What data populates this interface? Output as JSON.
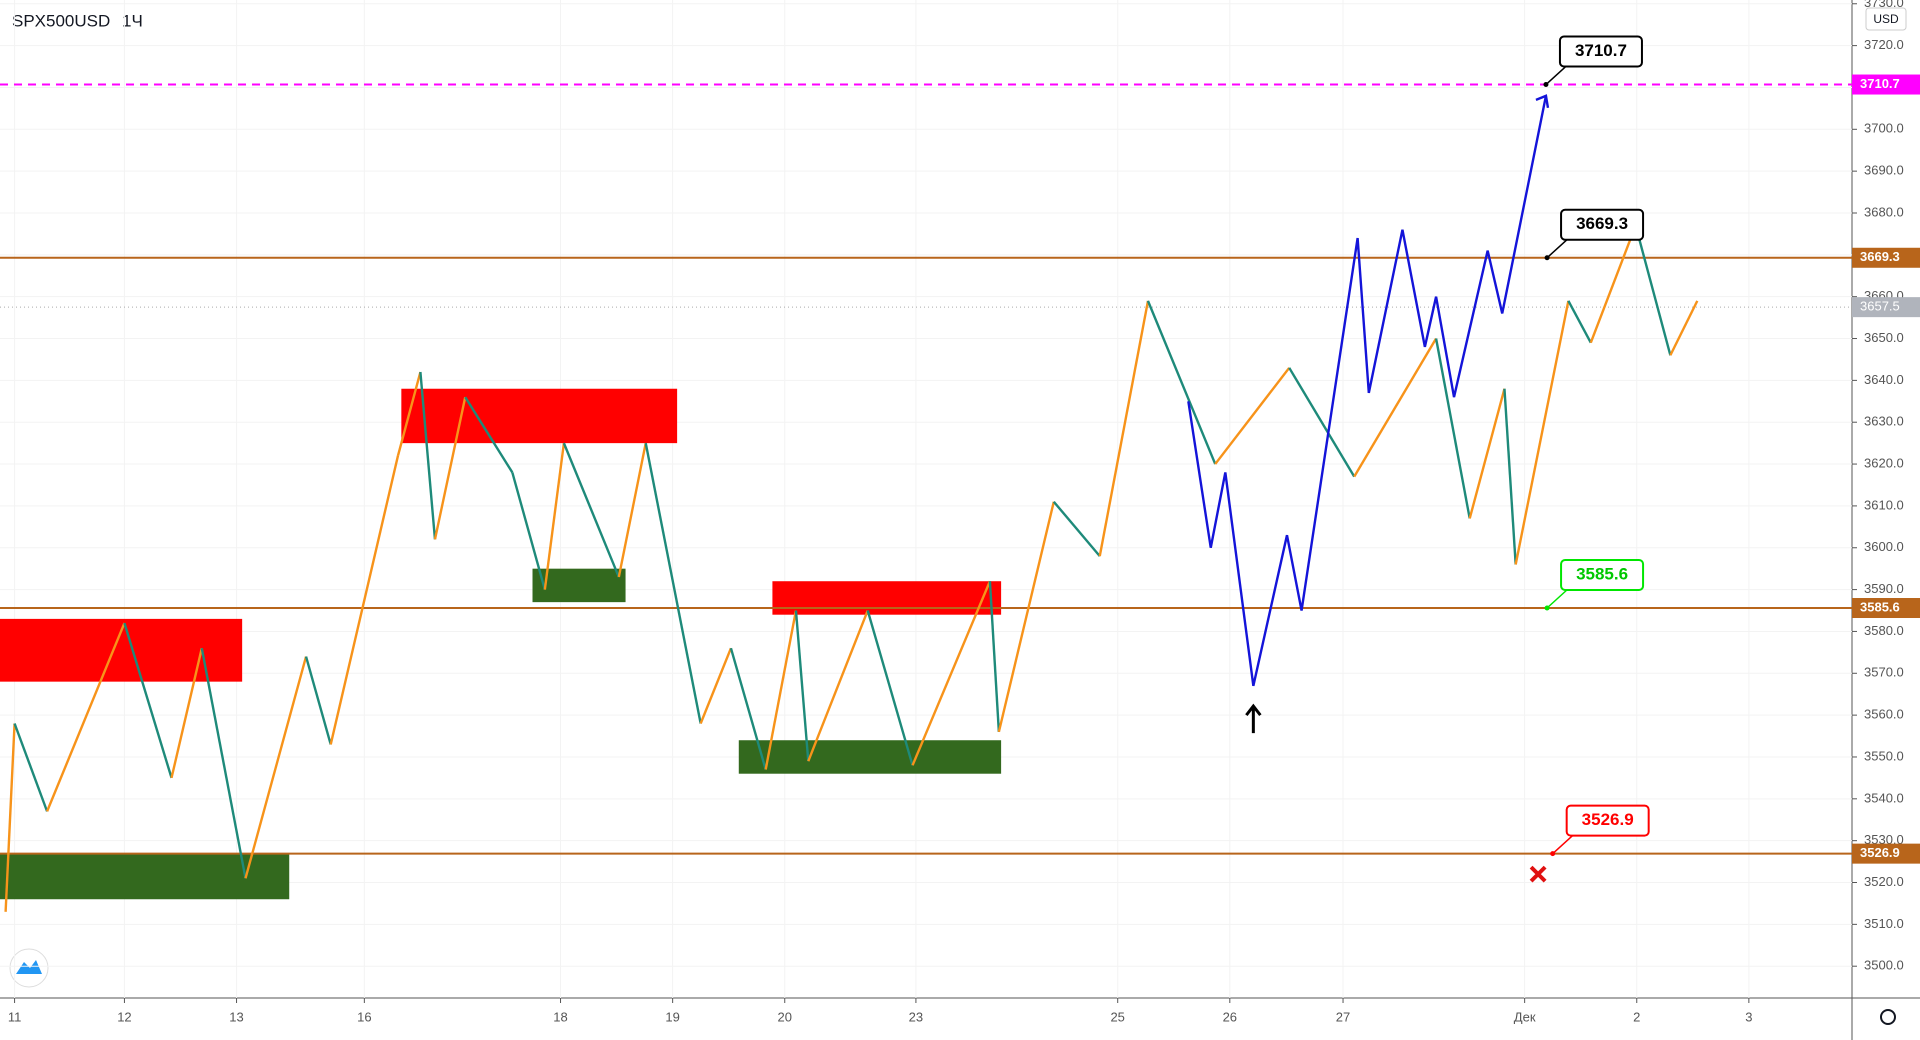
{
  "chart_data": {
    "type": "line",
    "title": "SPX500USD",
    "interval": "1Ч",
    "currency": "USD",
    "xlim": [
      0,
      16.52
    ],
    "ylim": [
      3492.4,
      3730.9
    ],
    "yticks": [
      {
        "value": 3500,
        "label": "3500.0"
      },
      {
        "value": 3510,
        "label": "3510.0"
      },
      {
        "value": 3520,
        "label": "3520.0"
      },
      {
        "value": 3530,
        "label": "3530.0"
      },
      {
        "value": 3540,
        "label": "3540.0"
      },
      {
        "value": 3550,
        "label": "3550.0"
      },
      {
        "value": 3560,
        "label": "3560.0"
      },
      {
        "value": 3570,
        "label": "3570.0"
      },
      {
        "value": 3580,
        "label": "3580.0"
      },
      {
        "value": 3590,
        "label": "3590.0"
      },
      {
        "value": 3600,
        "label": "3600.0"
      },
      {
        "value": 3610,
        "label": "3610.0"
      },
      {
        "value": 3620,
        "label": "3620.0"
      },
      {
        "value": 3630,
        "label": "3630.0"
      },
      {
        "value": 3640,
        "label": "3640.0"
      },
      {
        "value": 3650,
        "label": "3650.0"
      },
      {
        "value": 3660,
        "label": "3660.0"
      },
      {
        "value": 3670,
        "label": "3670.0"
      },
      {
        "value": 3680,
        "label": "3680.0"
      },
      {
        "value": 3690,
        "label": "3690.0"
      },
      {
        "value": 3700,
        "label": "3700.0"
      },
      {
        "value": 3710,
        "label": "3710.0"
      },
      {
        "value": 3720,
        "label": "3720.0"
      },
      {
        "value": 3730,
        "label": "3730.0"
      }
    ],
    "xticks": [
      {
        "value": 0.13,
        "label": "11"
      },
      {
        "value": 1.11,
        "label": "12"
      },
      {
        "value": 2.11,
        "label": "13"
      },
      {
        "value": 3.25,
        "label": "16"
      },
      {
        "value": 5.0,
        "label": "18"
      },
      {
        "value": 6.0,
        "label": "19"
      },
      {
        "value": 7.0,
        "label": "20"
      },
      {
        "value": 8.17,
        "label": "23"
      },
      {
        "value": 9.97,
        "label": "25"
      },
      {
        "value": 10.97,
        "label": "26"
      },
      {
        "value": 11.98,
        "label": "27"
      },
      {
        "value": 13.6,
        "label": "Дек"
      },
      {
        "value": 14.6,
        "label": "2"
      },
      {
        "value": 15.6,
        "label": "3"
      }
    ],
    "zones": [
      {
        "x0": 0,
        "x1": 2.16,
        "y0": 3568,
        "y1": 3583,
        "color": "#ff0000"
      },
      {
        "x0": 3.58,
        "x1": 6.04,
        "y0": 3625,
        "y1": 3638,
        "color": "#ff0000"
      },
      {
        "x0": 6.89,
        "x1": 8.93,
        "y0": 3584,
        "y1": 3592,
        "color": "#ff0000"
      },
      {
        "x0": 0,
        "x1": 2.58,
        "y0": 3516,
        "y1": 3527,
        "color": "#33691e"
      },
      {
        "x0": 4.75,
        "x1": 5.58,
        "y0": 3587,
        "y1": 3595,
        "color": "#33691e"
      },
      {
        "x0": 6.59,
        "x1": 8.93,
        "y0": 3546,
        "y1": 3554,
        "color": "#33691e"
      }
    ],
    "series": [
      {
        "color_up": "#f7931a",
        "color_down": "#1e8a7a",
        "x": [
          0.05,
          0.13,
          0.42,
          1.11,
          1.53,
          1.8,
          2.19,
          2.73,
          2.95,
          3.55,
          3.75,
          3.88,
          4.15,
          4.57,
          4.86,
          5.03,
          5.52,
          5.76,
          6.25,
          6.52,
          6.83,
          7.1,
          7.21,
          7.74,
          8.14,
          8.83,
          8.91,
          9.4,
          9.81,
          10.24,
          10.84,
          11.5,
          12.08,
          12.81,
          13.11,
          13.42,
          13.52,
          13.99,
          14.19,
          14.59,
          14.9,
          15.14
        ],
        "values": [
          3513,
          3558,
          3537,
          3582,
          3545,
          3576,
          3521,
          3574,
          3553,
          3622,
          3642,
          3602,
          3636,
          3618,
          3590,
          3625,
          3593,
          3625,
          3558,
          3576,
          3547,
          3585,
          3549,
          3585,
          3548,
          3592,
          3556,
          3611,
          3598,
          3659,
          3620,
          3643,
          3617,
          3650,
          3607,
          3638,
          3596,
          3659,
          3649,
          3677,
          3646,
          3659
        ]
      },
      {
        "color": "#1414d9",
        "x": [
          10.6,
          10.8,
          10.93,
          11.18,
          11.48,
          11.61,
          12.11,
          12.21,
          12.51,
          12.71,
          12.81,
          12.97,
          13.27,
          13.4,
          13.79
        ],
        "values": [
          3635,
          3600,
          3618,
          3567,
          3603,
          3585,
          3674,
          3637,
          3676,
          3648,
          3660,
          3636,
          3671,
          3656,
          3708
        ]
      }
    ],
    "levels": [
      {
        "value": 3710.7,
        "color": "#ff00ff",
        "dashed": true,
        "callout_x": 13.79,
        "callout_color": "#000000"
      },
      {
        "value": 3669.3,
        "color": "#b8651b",
        "dashed": false,
        "callout_x": 13.8,
        "callout_color": "#000000"
      },
      {
        "value": 3585.6,
        "color": "#b8651b",
        "dashed": false,
        "callout_x": 13.8,
        "callout_color": "#00e600"
      },
      {
        "value": 3526.9,
        "color": "#b8651b",
        "dashed": false,
        "callout_x": 13.85,
        "callout_color": "#ff0000"
      }
    ],
    "current_price": 3657.5,
    "stop_marker": {
      "x": 13.72,
      "y": 3522
    },
    "arrow_marker": {
      "x": 11.18,
      "y": 3560
    }
  }
}
